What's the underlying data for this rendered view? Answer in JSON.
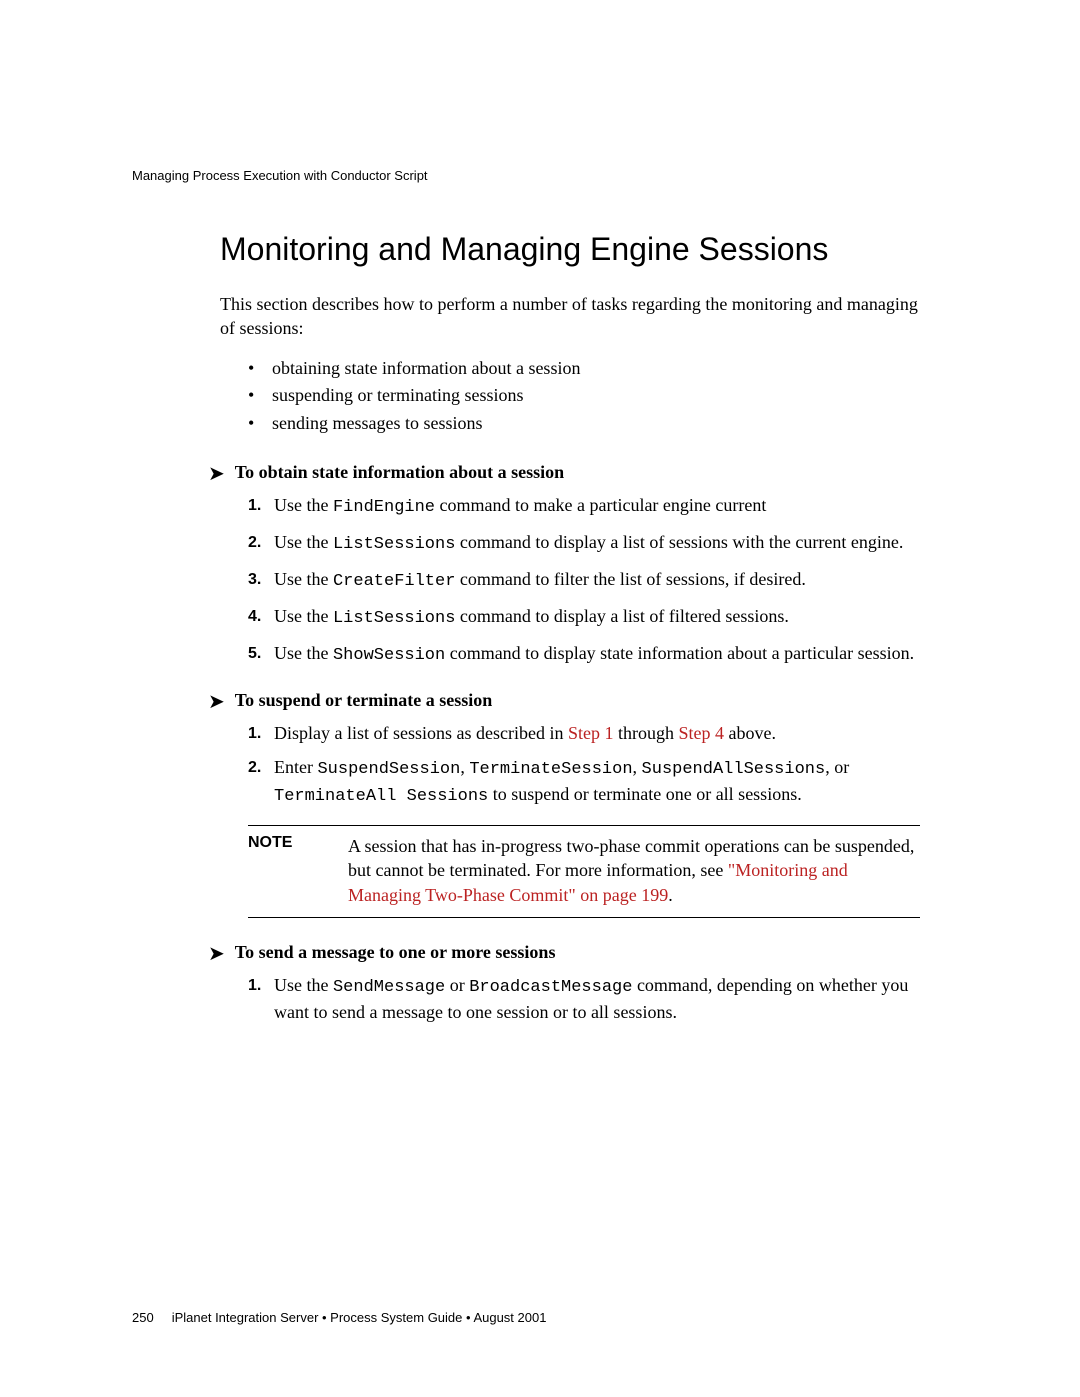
{
  "header": "Managing Process Execution with Conductor Script",
  "title": "Monitoring and Managing Engine Sessions",
  "intro": "This section describes how to perform a number of tasks regarding the monitoring and managing of sessions:",
  "bullets": [
    "obtaining state information about a session",
    "suspending or terminating sessions",
    "sending messages to sessions"
  ],
  "proc1": {
    "title": "To obtain state information about a session",
    "s1a": "Use the ",
    "s1b": "FindEngine",
    "s1c": " command to make a particular engine current",
    "s2a": "Use the ",
    "s2b": "ListSessions",
    "s2c": " command to display a list of sessions with the current engine.",
    "s3a": "Use the ",
    "s3b": "CreateFilter",
    "s3c": " command to filter the list of sessions, if desired.",
    "s4a": "Use the ",
    "s4b": "ListSessions",
    "s4c": " command to display a list of filtered sessions.",
    "s5a": "Use the ",
    "s5b": "ShowSession",
    "s5c": " command to display state information about a particular session."
  },
  "proc2": {
    "title": "To suspend or terminate a session",
    "s1a": "Display a list of sessions as described in ",
    "s1link1": "Step 1",
    "s1mid": " through ",
    "s1link2": "Step 4",
    "s1end": " above.",
    "s2a": "Enter ",
    "s2m1": "SuspendSession",
    "s2c1": ", ",
    "s2m2": "TerminateSession",
    "s2c2": ", ",
    "s2m3": "SuspendAllSessions",
    "s2c3": ", or ",
    "s2m4": "TerminateAll Sessions",
    "s2end": " to suspend or terminate one or all sessions."
  },
  "note": {
    "label": "NOTE",
    "body1": "A session that has in-progress two-phase commit operations can be suspended, but cannot be terminated. For more information, see ",
    "link": "\"Monitoring and Managing Two-Phase Commit\" on page 199",
    "body2": "."
  },
  "proc3": {
    "title": "To send a message to one or more sessions",
    "s1a": "Use the ",
    "s1m1": "SendMessage",
    "s1mid": " or ",
    "s1m2": "BroadcastMessage",
    "s1end": " command, depending on whether you want to send a message to one session or to all sessions."
  },
  "footer": {
    "page": "250",
    "text": "iPlanet Integration Server • Process System Guide • August 2001"
  }
}
